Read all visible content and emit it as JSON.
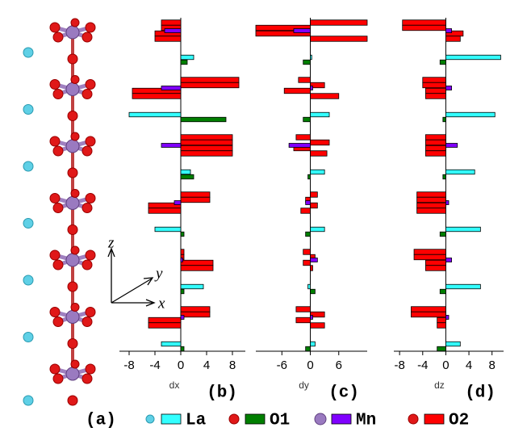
{
  "structure": {
    "label": "(a)",
    "axes": {
      "z": "z",
      "y": "y",
      "x": "x"
    }
  },
  "legend": [
    {
      "name": "La",
      "color": "#33ffff"
    },
    {
      "name": "O1",
      "color": "#007f00"
    },
    {
      "name": "Mn",
      "color": "#8000ff"
    },
    {
      "name": "O2",
      "color": "#ff0000"
    }
  ],
  "chart_data": [
    {
      "type": "bar",
      "orientation": "horizontal",
      "xlabel": "dx",
      "panel": "(b)",
      "xlim": [
        -9.5,
        10
      ],
      "xticks": [
        -8,
        -4,
        0,
        4,
        8
      ],
      "series": [
        {
          "values": [
            2,
            -8,
            1.5,
            -4,
            3.5,
            -3
          ]
        },
        {
          "values": [
            1,
            7,
            2,
            0.5,
            0.5,
            0.5
          ]
        },
        {
          "values": [
            -2.5,
            -3,
            -3,
            -1,
            0.3,
            0.5
          ]
        },
        {
          "values": [
            -3,
            -3,
            -4,
            -4,
            9,
            9,
            -7.5,
            -7.5,
            8,
            8,
            8,
            8,
            4.5,
            4.5,
            -5,
            -5,
            0.5,
            0.5,
            5,
            5,
            4.5,
            4.5,
            -5,
            -5
          ]
        }
      ]
    },
    {
      "type": "bar",
      "orientation": "horizontal",
      "xlabel": "dy",
      "panel": "(c)",
      "xlim": [
        -11.5,
        12
      ],
      "xticks": [
        -6,
        0,
        6
      ],
      "series": [
        {
          "values": [
            0.3,
            4,
            3,
            3,
            -0.5,
            1
          ]
        },
        {
          "values": [
            -1.5,
            -1.5,
            -0.5,
            -1,
            1,
            -1
          ]
        },
        {
          "values": [
            -3.5,
            0.5,
            -4.5,
            -1,
            1.5,
            0.5
          ]
        },
        {
          "values": [
            12,
            -11.5,
            -11.5,
            12,
            -2.5,
            3,
            -5.5,
            6,
            -3,
            4,
            -3.5,
            3.5,
            1.5,
            -1,
            1.5,
            -2,
            -1.5,
            1,
            -1.5,
            0.5,
            -3,
            3,
            -3,
            3
          ]
        }
      ]
    },
    {
      "type": "bar",
      "orientation": "horizontal",
      "xlabel": "dz",
      "panel": "(d)",
      "xlim": [
        -9,
        10
      ],
      "xticks": [
        -8,
        -4,
        0,
        4,
        8
      ],
      "series": [
        {
          "values": [
            9.5,
            8.5,
            5,
            6,
            6,
            2.5
          ]
        },
        {
          "values": [
            -1,
            -0.5,
            -0.5,
            -1,
            -1,
            -1.5
          ]
        },
        {
          "values": [
            1,
            1,
            2,
            0.5,
            1,
            0.5
          ]
        },
        {
          "values": [
            -7.5,
            -7.5,
            3,
            2.5,
            -4,
            -4,
            -3.5,
            -3.5,
            -3.5,
            -3.5,
            -3.5,
            -3.5,
            -5,
            -5,
            -5,
            -5,
            -5.5,
            -5.5,
            -3.5,
            -3.5,
            -6,
            -6,
            -1.5,
            -1.5
          ]
        }
      ]
    }
  ]
}
